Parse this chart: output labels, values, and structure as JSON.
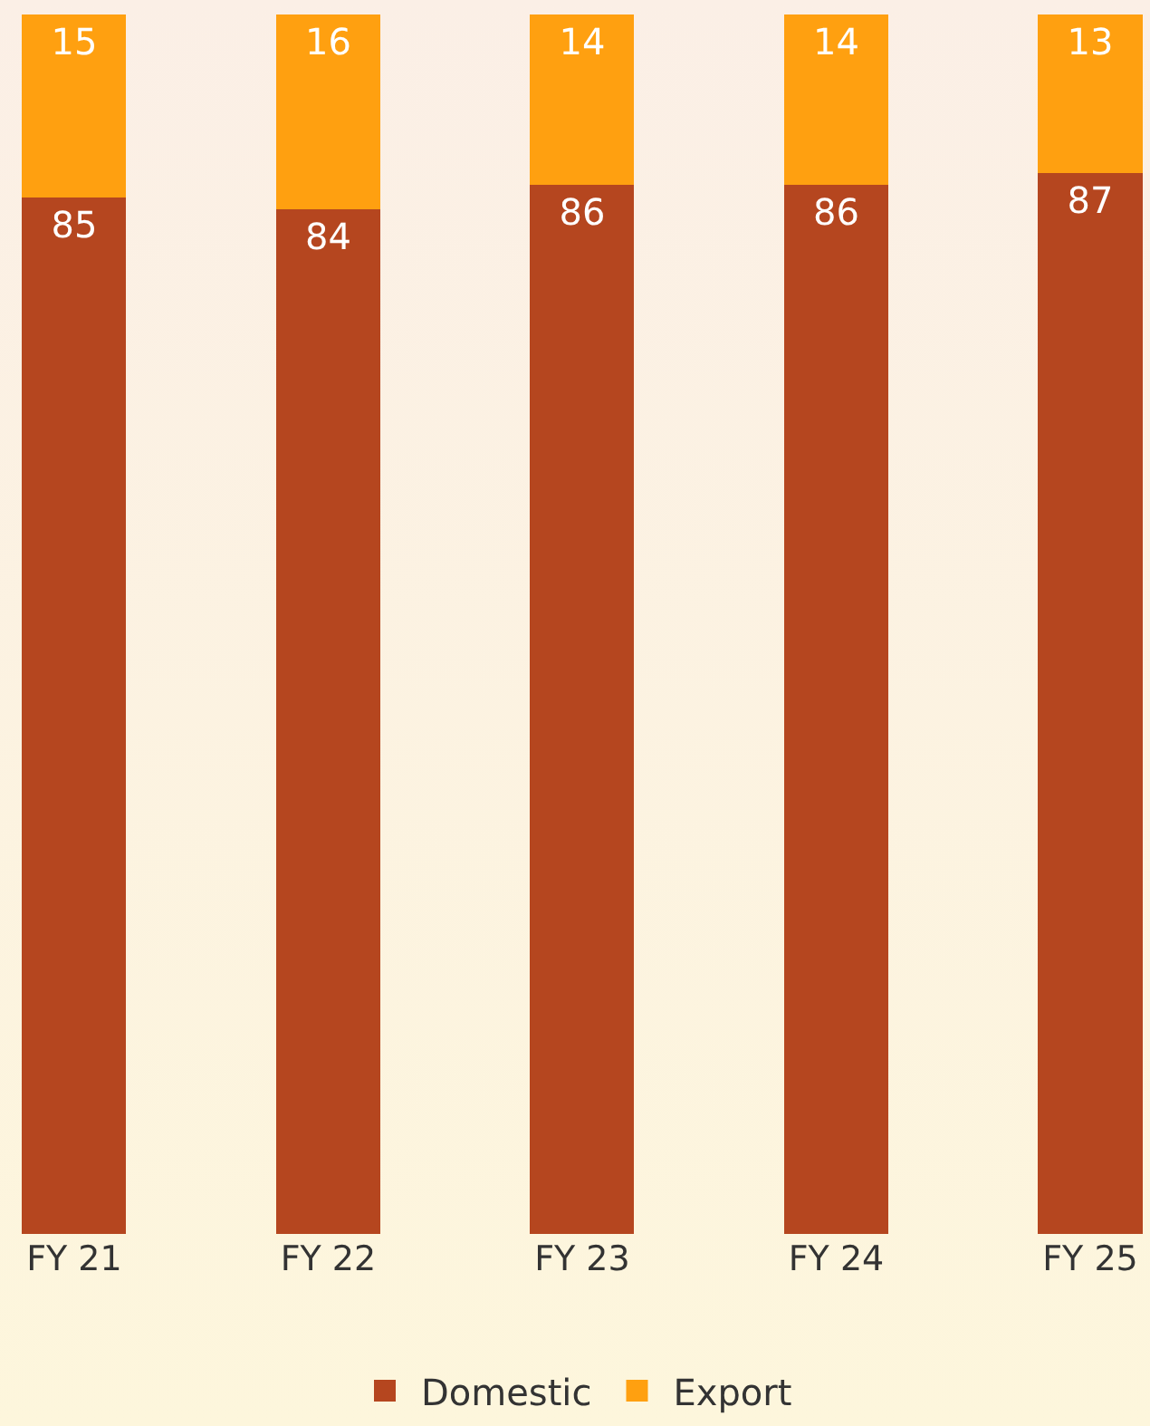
{
  "chart_data": {
    "type": "bar",
    "stacked": true,
    "categories": [
      "FY 21",
      "FY 22",
      "FY 23",
      "FY 24",
      "FY 25"
    ],
    "series": [
      {
        "name": "Domestic",
        "color": "#b5461f",
        "values": [
          85,
          84,
          86,
          86,
          87
        ]
      },
      {
        "name": "Export",
        "color": "#ffa010",
        "values": [
          15,
          16,
          14,
          14,
          13
        ]
      }
    ],
    "ylim": [
      0,
      100
    ],
    "data_labels": true,
    "legend": "bottom"
  }
}
